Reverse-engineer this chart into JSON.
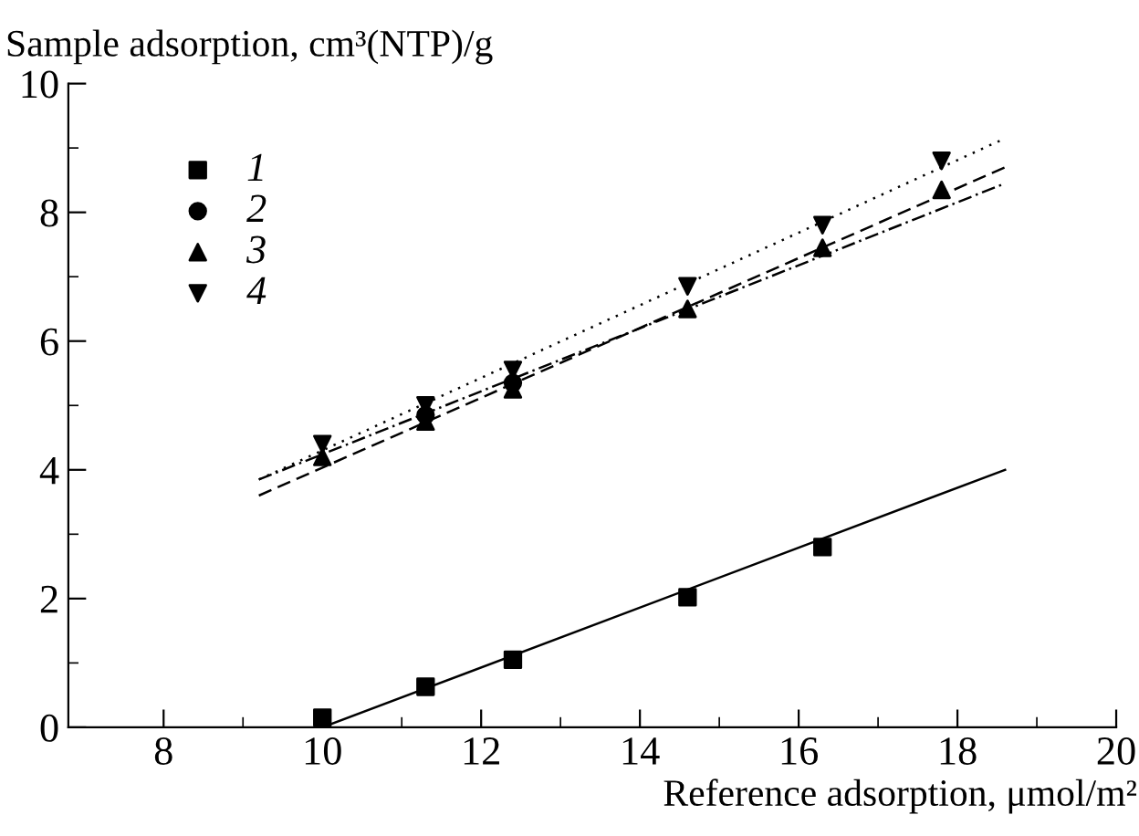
{
  "chart_data": {
    "type": "scatter",
    "xlabel": "Reference adsorption, μmol/m²",
    "ylabel": "Sample adsorption, cm³(NTP)/g",
    "xlim": [
      6.8,
      20
    ],
    "xticks": [
      8,
      10,
      12,
      14,
      16,
      18,
      20
    ],
    "ylim": [
      0,
      10
    ],
    "yticks": [
      0,
      2,
      4,
      6,
      8,
      10
    ],
    "grid": false,
    "legend": "top left",
    "series": [
      {
        "name": "1",
        "color": "#000000",
        "marker": "square",
        "x": [
          10,
          11.3,
          12.4,
          14.6,
          16.3
        ],
        "values": [
          0.15,
          0.63,
          1.05,
          2.02,
          2.8
        ]
      },
      {
        "name": "2",
        "color": "#000000",
        "marker": "circle",
        "x": [
          11.3,
          12.4
        ],
        "values": [
          4.85,
          5.35
        ]
      },
      {
        "name": "3",
        "color": "#000000",
        "marker": "triangle",
        "x": [
          10,
          11.3,
          12.4,
          14.6,
          16.3,
          17.8
        ],
        "values": [
          4.2,
          4.75,
          5.25,
          6.5,
          7.45,
          8.35
        ]
      },
      {
        "name": "4",
        "color": "#000000",
        "marker": "triangle",
        "x": [
          10,
          11.3,
          12.4,
          14.6,
          16.3,
          17.8
        ],
        "values": [
          4.4,
          5.0,
          5.55,
          6.85,
          7.8,
          8.8
        ]
      },
      {
        "type": "line",
        "color": "#000000",
        "line_style": "solid",
        "x": [
          10,
          18.6
        ],
        "values": [
          0,
          4.0
        ]
      },
      {
        "type": "line",
        "color": "#000000",
        "line_style": "dashdot",
        "x": [
          9.2,
          18.6
        ],
        "values": [
          3.85,
          8.45
        ]
      },
      {
        "type": "line",
        "color": "#000000",
        "line_style": "dashed",
        "x": [
          9.2,
          18.6
        ],
        "values": [
          3.6,
          8.7
        ]
      },
      {
        "type": "line",
        "color": "#000000",
        "line_style": "dotted",
        "x": [
          9.2,
          18.6
        ],
        "values": [
          3.85,
          9.15
        ]
      }
    ]
  }
}
